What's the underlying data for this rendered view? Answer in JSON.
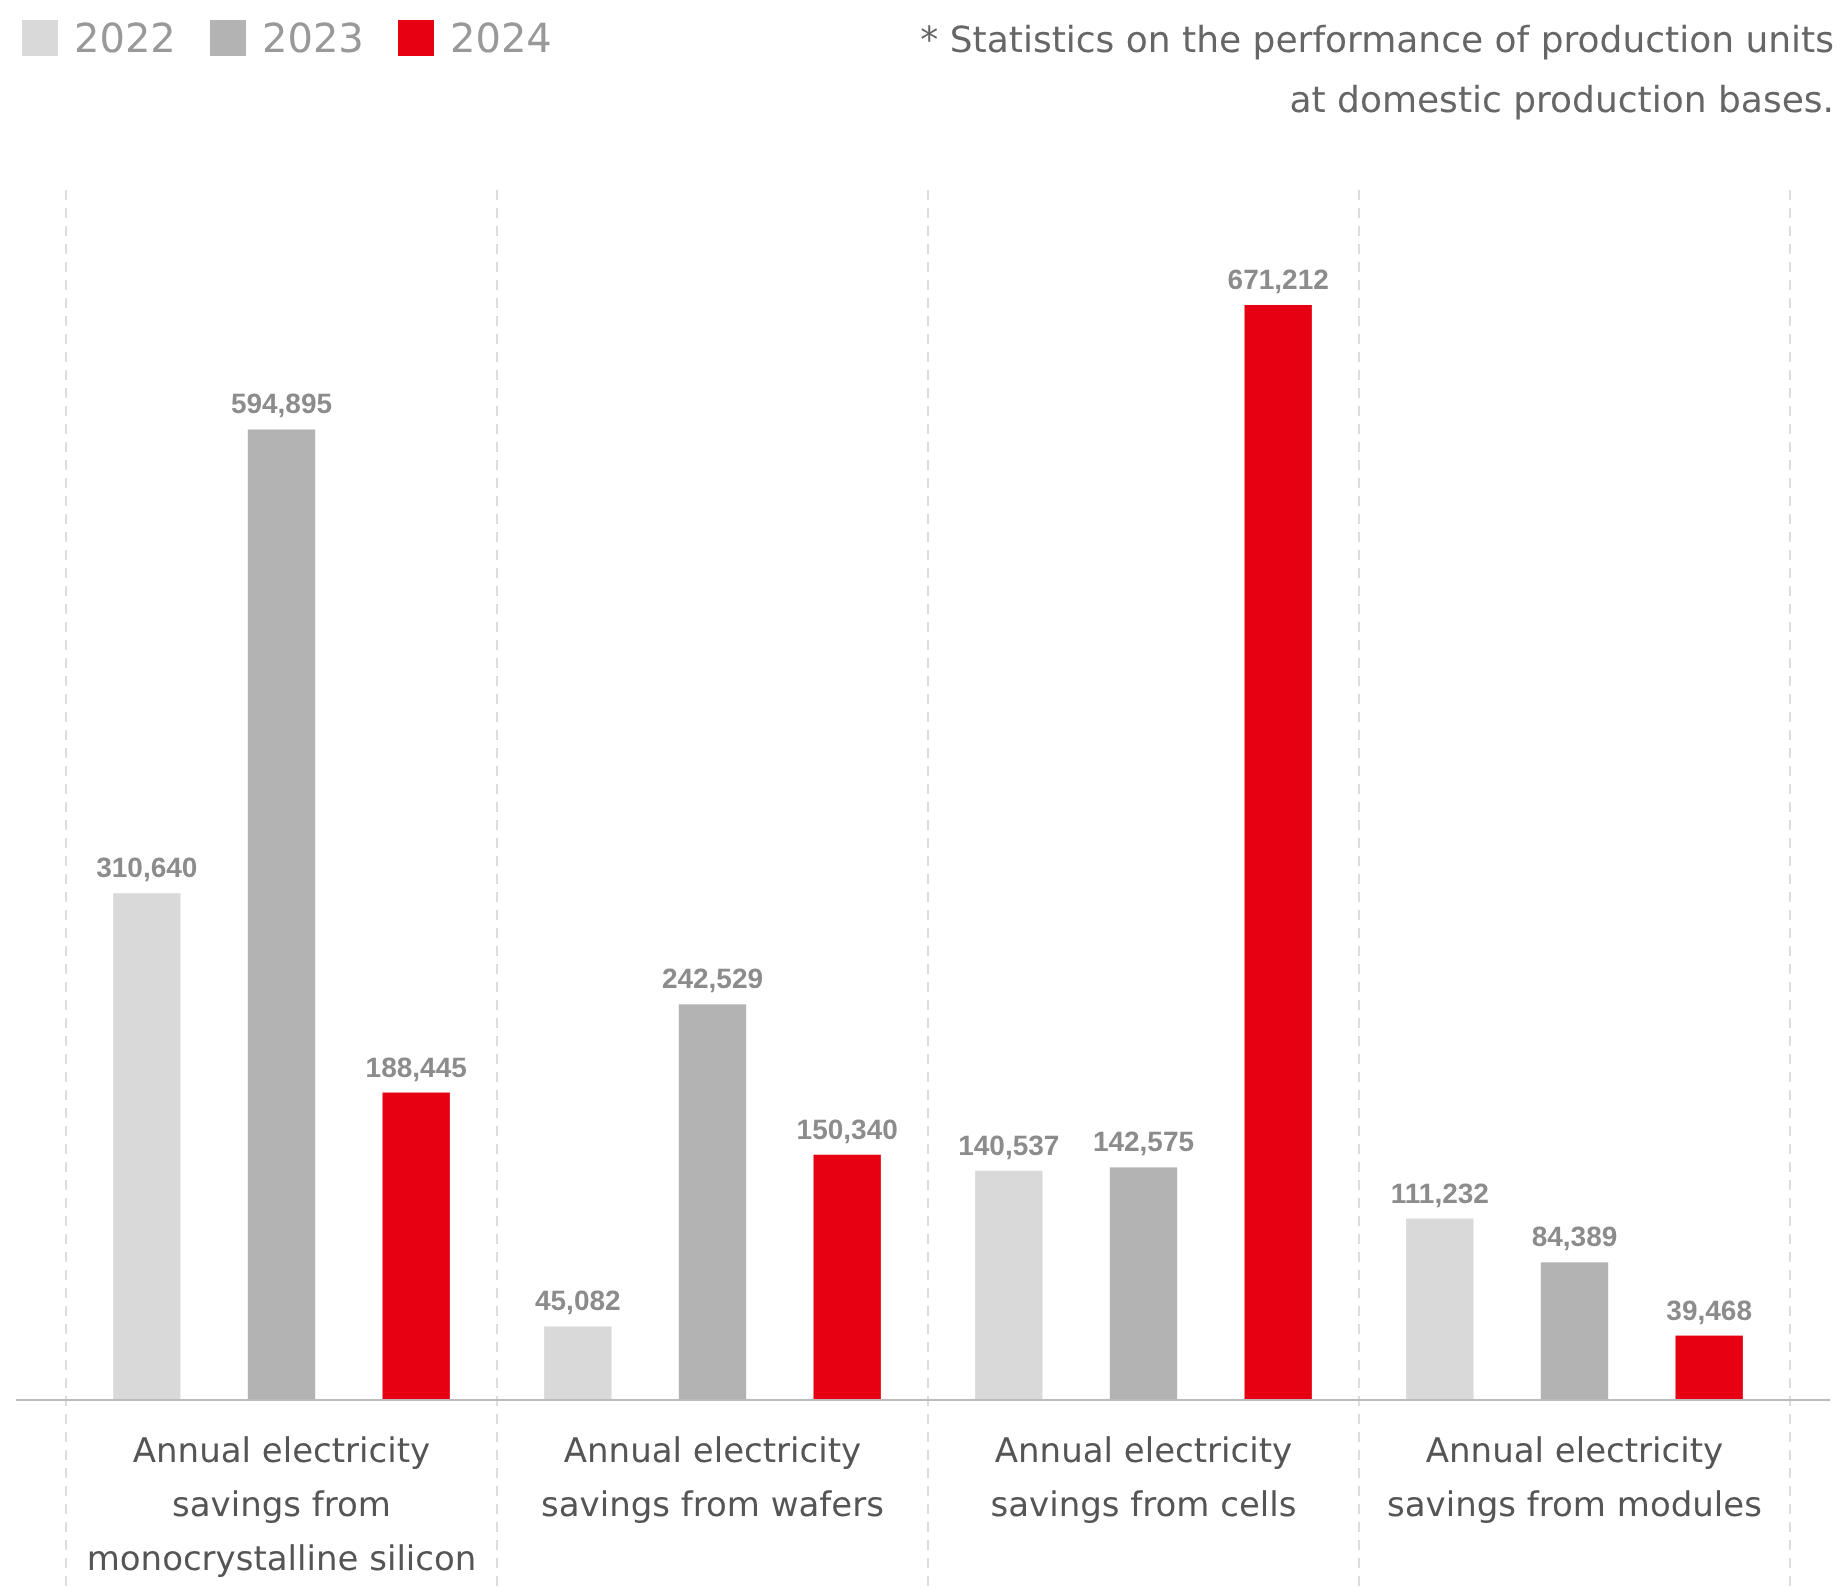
{
  "chart_data": {
    "type": "bar",
    "categories": [
      "Annual electricity savings from monocrystalline silicon",
      "Annual electricity savings from wafers",
      "Annual electricity savings from cells",
      "Annual electricity savings from modules"
    ],
    "series": [
      {
        "name": "2022",
        "color": "#d9d9d9",
        "values": [
          310640,
          45082,
          140537,
          111232
        ],
        "value_labels": [
          "310,640",
          "45,082",
          "140,537",
          "111,232"
        ]
      },
      {
        "name": "2023",
        "color": "#b3b3b3",
        "values": [
          594895,
          242529,
          142575,
          84389
        ],
        "value_labels": [
          "594,895",
          "242,529",
          "142,575",
          "84,389"
        ]
      },
      {
        "name": "2024",
        "color": "#e60012",
        "values": [
          188445,
          150340,
          671212,
          39468
        ],
        "value_labels": [
          "188,445",
          "150,340",
          "671,212",
          "39,468"
        ]
      }
    ],
    "legend": "top left",
    "grid": "x",
    "annotations": [
      "* Statistics on the performance of production units at domestic production bases."
    ]
  }
}
